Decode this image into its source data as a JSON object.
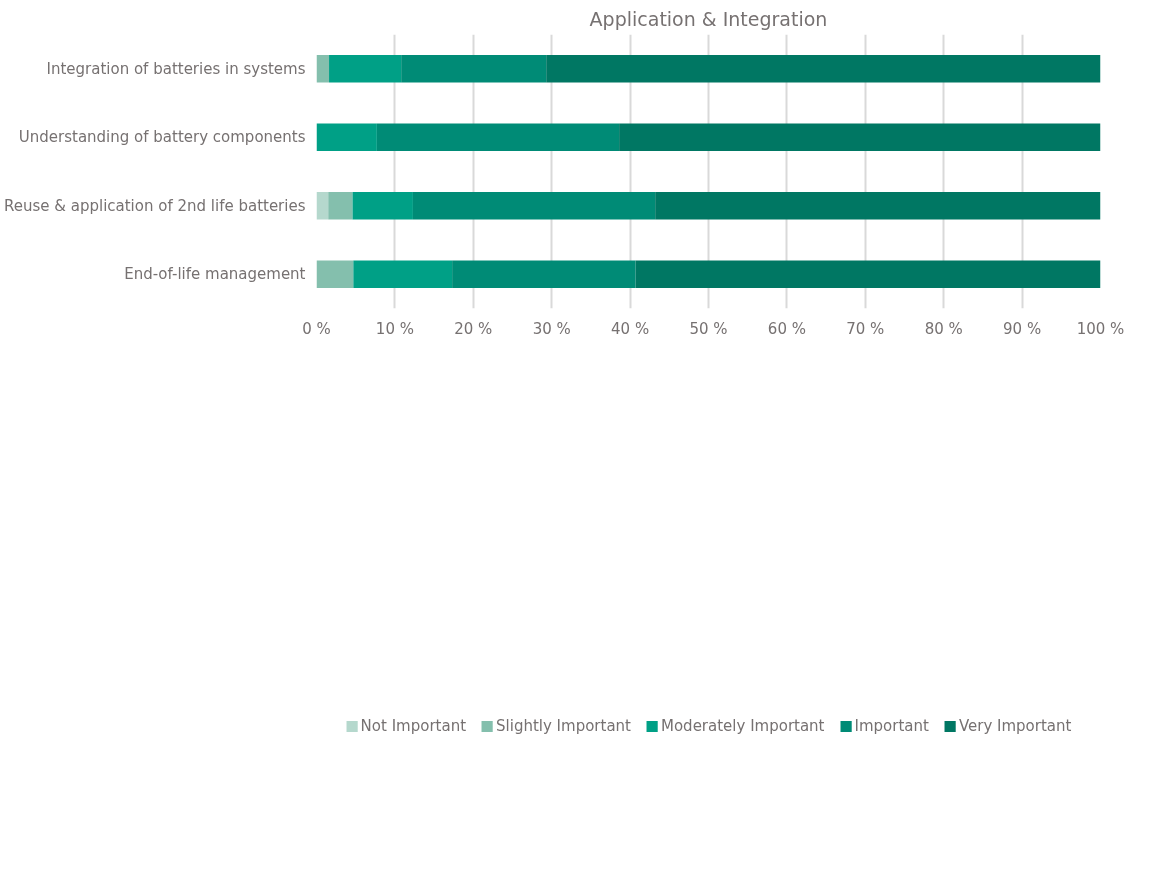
{
  "chart_data": {
    "type": "bar",
    "orientation": "horizontal",
    "stacked": true,
    "title": "Application & Integration",
    "categories": [
      "Integration of batteries in systems",
      "Understanding of battery components",
      "Reuse & application of 2nd life batteries",
      "End-of-life management"
    ],
    "series": [
      {
        "name": "Not Important",
        "color": "#b5d8cd",
        "values": [
          0,
          0,
          1.5,
          0
        ]
      },
      {
        "name": "Slightly Important",
        "color": "#84bfad",
        "values": [
          1.6,
          0,
          3.1,
          4.7
        ]
      },
      {
        "name": "Moderately Important",
        "color": "#00a086",
        "values": [
          9.2,
          7.7,
          7.7,
          12.6
        ]
      },
      {
        "name": "Important",
        "color": "#008b76",
        "values": [
          18.5,
          30.9,
          30.9,
          23.4
        ]
      },
      {
        "name": "Very Important",
        "color": "#007763",
        "values": [
          70.7,
          61.4,
          56.8,
          59.3
        ]
      }
    ],
    "xlim": [
      0,
      100
    ],
    "xticks": [
      {
        "value": 0,
        "label": "0 %"
      },
      {
        "value": 10,
        "label": "10 %"
      },
      {
        "value": 20,
        "label": "20 %"
      },
      {
        "value": 30,
        "label": "30 %"
      },
      {
        "value": 40,
        "label": "40 %"
      },
      {
        "value": 50,
        "label": "50 %"
      },
      {
        "value": 60,
        "label": "60 %"
      },
      {
        "value": 70,
        "label": "70 %"
      },
      {
        "value": 80,
        "label": "80 %"
      },
      {
        "value": 90,
        "label": "90 %"
      },
      {
        "value": 100,
        "label": "100 %"
      }
    ],
    "grid": "x",
    "legend": "bottom"
  }
}
